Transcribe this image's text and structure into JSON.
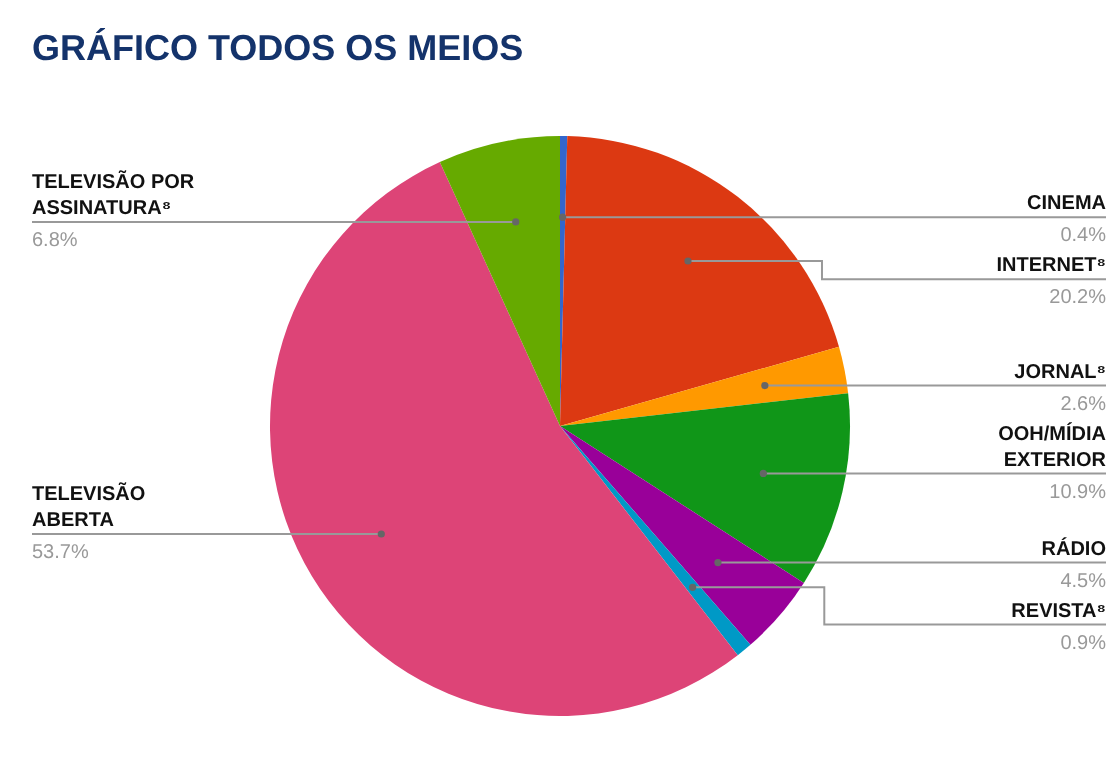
{
  "chart_data": {
    "type": "pie",
    "title": "GRÁFICO TODOS OS MEIOS",
    "categories": [
      "CINEMA",
      "INTERNET⁸",
      "JORNAL⁸",
      "OOH/MÍDIA EXTERIOR",
      "RÁDIO",
      "REVISTA⁸",
      "TELEVISÃO ABERTA",
      "TELEVISÃO POR ASSINATURA⁸"
    ],
    "values": [
      0.4,
      20.2,
      2.6,
      10.9,
      4.5,
      0.9,
      53.7,
      6.8
    ],
    "value_labels": [
      "0.4%",
      "20.2%",
      "2.6%",
      "10.9%",
      "4.5%",
      "0.9%",
      "53.7%",
      "6.8%"
    ],
    "colors": [
      "#3366cc",
      "#dc3912",
      "#ff9900",
      "#109618",
      "#990099",
      "#0099c6",
      "#dd4477",
      "#66aa00"
    ]
  }
}
